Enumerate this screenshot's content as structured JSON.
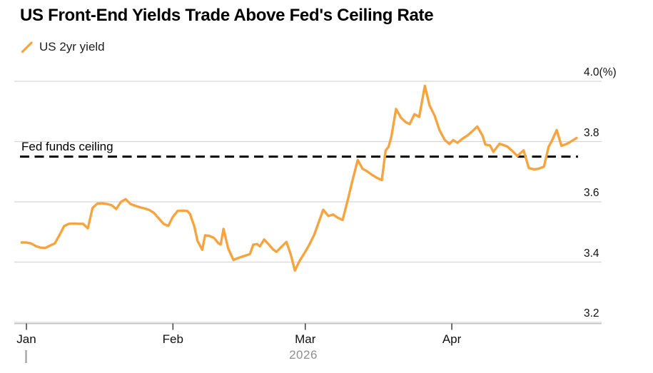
{
  "header": {
    "title": "US Front-End Yields Trade Above Fed's Ceiling Rate"
  },
  "legend": {
    "series_label": "US 2yr yield",
    "series_color": "#F6A440"
  },
  "annotation": {
    "fed_ceiling_label": "Fed funds ceiling"
  },
  "colors": {
    "background": "#ffffff",
    "title_text": "#000000",
    "axis_text": "#101010",
    "year_text": "#8E8E8E",
    "gridline": "#D6D6D6",
    "bottom_axis_line": "#C4C4C4",
    "month_tick": "#3F3F3F",
    "year_start_tick": "#9E9E9E",
    "reference_line": "#000000",
    "series_line": "#F6A440"
  },
  "chart_data": {
    "type": "line",
    "title": "US Front-End Yields Trade Above Fed's Ceiling Rate",
    "xlabel": "",
    "ylabel": "(%)",
    "ylim": [
      3.2,
      4.0
    ],
    "grid": "horizontal",
    "legend_position": "top-left",
    "y_axis_side": "right",
    "y_ticks": [
      {
        "label": "4.0(%)",
        "value": 4.0
      },
      {
        "label": "3.8",
        "value": 3.8
      },
      {
        "label": "3.6",
        "value": 3.6
      },
      {
        "label": "3.4",
        "value": 3.4
      },
      {
        "label": "3.2",
        "value": 3.2
      }
    ],
    "x_unit": "days_from_jan1_2026",
    "x_domain_days": [
      -2.57,
      121.7
    ],
    "x_ticks": [
      {
        "label": "Jan",
        "day": 0
      },
      {
        "label": "Feb",
        "day": 31
      },
      {
        "label": "Mar",
        "day": 59
      },
      {
        "label": "Apr",
        "day": 90
      }
    ],
    "year": "2026",
    "reference_line": {
      "label": "Fed funds ceiling",
      "value": 3.75,
      "style": "dashed",
      "color": "#000000",
      "x_start_day": -1.36,
      "x_end_day": 116.7
    },
    "series": [
      {
        "name": "US 2yr yield",
        "color": "#F6A440",
        "points": [
          [
            -1,
            3.465
          ],
          [
            0,
            3.465
          ],
          [
            1,
            3.462
          ],
          [
            2,
            3.453
          ],
          [
            3,
            3.448
          ],
          [
            4,
            3.447
          ],
          [
            5,
            3.455
          ],
          [
            6,
            3.462
          ],
          [
            7,
            3.49
          ],
          [
            8,
            3.52
          ],
          [
            9,
            3.527
          ],
          [
            10,
            3.528
          ],
          [
            11,
            3.527
          ],
          [
            12,
            3.527
          ],
          [
            13,
            3.512
          ],
          [
            14,
            3.58
          ],
          [
            15,
            3.594
          ],
          [
            16,
            3.595
          ],
          [
            17,
            3.593
          ],
          [
            18,
            3.589
          ],
          [
            19,
            3.576
          ],
          [
            20,
            3.6
          ],
          [
            21,
            3.609
          ],
          [
            22,
            3.593
          ],
          [
            23,
            3.587
          ],
          [
            24,
            3.582
          ],
          [
            25,
            3.578
          ],
          [
            26,
            3.573
          ],
          [
            27,
            3.563
          ],
          [
            28,
            3.545
          ],
          [
            29,
            3.527
          ],
          [
            30,
            3.52
          ],
          [
            31,
            3.55
          ],
          [
            32,
            3.57
          ],
          [
            33,
            3.571
          ],
          [
            34,
            3.57
          ],
          [
            34.6,
            3.56
          ],
          [
            35.5,
            3.52
          ],
          [
            36.2,
            3.47
          ],
          [
            37.2,
            3.441
          ],
          [
            37.8,
            3.489
          ],
          [
            38.7,
            3.487
          ],
          [
            39.7,
            3.48
          ],
          [
            40.6,
            3.463
          ],
          [
            41.1,
            3.458
          ],
          [
            41.7,
            3.51
          ],
          [
            42.7,
            3.445
          ],
          [
            43.8,
            3.407
          ],
          [
            44.7,
            3.413
          ],
          [
            45.8,
            3.419
          ],
          [
            46.8,
            3.424
          ],
          [
            47.3,
            3.427
          ],
          [
            48,
            3.458
          ],
          [
            48.8,
            3.46
          ],
          [
            49.4,
            3.452
          ],
          [
            50.3,
            3.475
          ],
          [
            51.3,
            3.458
          ],
          [
            52.2,
            3.442
          ],
          [
            52.9,
            3.434
          ],
          [
            53.9,
            3.45
          ],
          [
            55,
            3.467
          ],
          [
            55.9,
            3.427
          ],
          [
            56.8,
            3.372
          ],
          [
            57.8,
            3.404
          ],
          [
            58.9,
            3.432
          ],
          [
            59.8,
            3.456
          ],
          [
            60.9,
            3.491
          ],
          [
            61.9,
            3.535
          ],
          [
            62.8,
            3.574
          ],
          [
            63.9,
            3.553
          ],
          [
            64.9,
            3.558
          ],
          [
            65.8,
            3.548
          ],
          [
            66.9,
            3.54
          ],
          [
            68,
            3.607
          ],
          [
            69,
            3.672
          ],
          [
            70.1,
            3.739
          ],
          [
            71.1,
            3.71
          ],
          [
            72.2,
            3.7
          ],
          [
            73.1,
            3.69
          ],
          [
            74.1,
            3.68
          ],
          [
            75.2,
            3.672
          ],
          [
            76,
            3.77
          ],
          [
            76.6,
            3.782
          ],
          [
            77.2,
            3.815
          ],
          [
            78.2,
            3.908
          ],
          [
            79.3,
            3.878
          ],
          [
            80.3,
            3.864
          ],
          [
            81.1,
            3.858
          ],
          [
            82.1,
            3.891
          ],
          [
            83.1,
            3.882
          ],
          [
            84.3,
            3.985
          ],
          [
            85.3,
            3.92
          ],
          [
            86.4,
            3.885
          ],
          [
            87.4,
            3.838
          ],
          [
            88.5,
            3.806
          ],
          [
            89.5,
            3.792
          ],
          [
            90.3,
            3.805
          ],
          [
            91.2,
            3.796
          ],
          [
            92.3,
            3.81
          ],
          [
            93.3,
            3.82
          ],
          [
            94.4,
            3.835
          ],
          [
            95.4,
            3.85
          ],
          [
            96.5,
            3.82
          ],
          [
            97.1,
            3.79
          ],
          [
            98.1,
            3.787
          ],
          [
            98.8,
            3.766
          ],
          [
            100.1,
            3.793
          ],
          [
            101.2,
            3.787
          ],
          [
            101.8,
            3.783
          ],
          [
            102.8,
            3.769
          ],
          [
            103.9,
            3.752
          ],
          [
            105.2,
            3.771
          ],
          [
            106.3,
            3.712
          ],
          [
            107.4,
            3.708
          ],
          [
            108.4,
            3.71
          ],
          [
            109.5,
            3.717
          ],
          [
            110.5,
            3.783
          ],
          [
            111.1,
            3.8
          ],
          [
            112.2,
            3.838
          ],
          [
            113.2,
            3.786
          ],
          [
            114.3,
            3.792
          ],
          [
            115.2,
            3.8
          ],
          [
            116.4,
            3.812
          ]
        ]
      }
    ]
  }
}
